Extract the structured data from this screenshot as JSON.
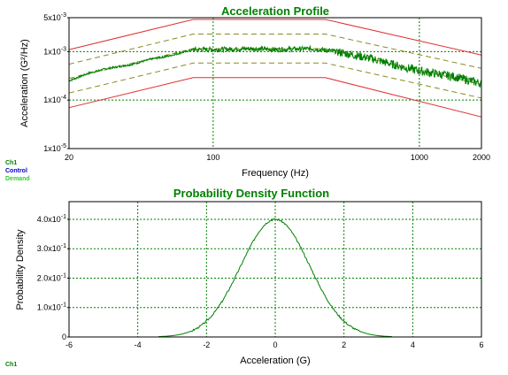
{
  "colors": {
    "title": "#008000",
    "abort_lines": "#e03030",
    "alarm_lines": "#8a8a20",
    "control": "#008000",
    "demand": "#66dd66",
    "grid": "#008000",
    "legend_ch1": "#008000",
    "legend_control": "#0000cc",
    "legend_demand": "#33cc33"
  },
  "legend_top": {
    "ch1": "Ch1",
    "control": "Control",
    "demand": "Demand"
  },
  "legend_bottom": {
    "ch1": "Ch1"
  },
  "chart_data": [
    {
      "type": "line",
      "title": "Acceleration Profile",
      "xlabel": "Frequency (Hz)",
      "ylabel": "Acceleration (G²/Hz)",
      "x_scale": "log",
      "y_scale": "log",
      "xlim": [
        20,
        2000
      ],
      "ylim": [
        1e-05,
        0.005
      ],
      "grid": true,
      "x_ticks": [
        {
          "value": 20,
          "label": "20"
        },
        {
          "value": 100,
          "label": "100"
        },
        {
          "value": 1000,
          "label": "1000"
        },
        {
          "value": 2000,
          "label": "2000"
        }
      ],
      "y_ticks": [
        {
          "value": 0.005,
          "mant": "5x10",
          "exp": "-3"
        },
        {
          "value": 0.001,
          "mant": "1x10",
          "exp": "-3"
        },
        {
          "value": 0.0001,
          "mant": "1x10",
          "exp": "-4"
        },
        {
          "value": 1e-05,
          "mant": "1x10",
          "exp": "-5"
        }
      ],
      "profile_breakpoints_hz": [
        20,
        80,
        350,
        2000
      ],
      "series": [
        {
          "role": "abort-high",
          "x": [
            20,
            80,
            350,
            2000
          ],
          "y": [
            0.0011,
            0.0046,
            0.0046,
            0.00085
          ]
        },
        {
          "role": "alarm-high",
          "x": [
            20,
            80,
            350,
            2000
          ],
          "y": [
            0.00055,
            0.0023,
            0.0023,
            0.00045
          ]
        },
        {
          "role": "demand",
          "x": [
            20,
            80,
            350,
            2000
          ],
          "y": [
            0.00028,
            0.00115,
            0.00115,
            0.00021
          ]
        },
        {
          "role": "alarm-low",
          "x": [
            20,
            80,
            350,
            2000
          ],
          "y": [
            0.00014,
            0.00058,
            0.00058,
            0.00011
          ]
        },
        {
          "role": "abort-low",
          "x": [
            20,
            80,
            350,
            2000
          ],
          "y": [
            7e-05,
            0.00029,
            0.00029,
            4.5e-05
          ]
        },
        {
          "role": "control",
          "x": [
            20,
            25,
            30,
            40,
            50,
            60,
            70,
            80,
            100,
            150,
            200,
            300,
            400,
            600,
            800,
            1000,
            1500,
            2000
          ],
          "y": [
            0.00025,
            0.00036,
            0.00044,
            0.00054,
            0.0007,
            0.0008,
            0.00095,
            0.0011,
            0.0011,
            0.00115,
            0.0011,
            0.00115,
            0.001,
            0.0007,
            0.0005,
            0.0004,
            0.0003,
            0.00022
          ]
        }
      ]
    },
    {
      "type": "line",
      "title": "Probability Density Function",
      "xlabel": "Acceleration (G)",
      "ylabel": "Probability Density",
      "xlim": [
        -6,
        6
      ],
      "ylim": [
        0,
        0.46
      ],
      "grid": true,
      "x_ticks": [
        {
          "value": -6,
          "label": "-6"
        },
        {
          "value": -4,
          "label": "-4"
        },
        {
          "value": -2,
          "label": "-2"
        },
        {
          "value": 0,
          "label": "0"
        },
        {
          "value": 2,
          "label": "2"
        },
        {
          "value": 4,
          "label": "4"
        },
        {
          "value": 6,
          "label": "6"
        }
      ],
      "y_ticks": [
        {
          "value": 0.4,
          "mant": "4.0x10",
          "exp": "-1"
        },
        {
          "value": 0.3,
          "mant": "3.0x10",
          "exp": "-1"
        },
        {
          "value": 0.2,
          "mant": "2.0x10",
          "exp": "-1"
        },
        {
          "value": 0.1,
          "mant": "1.0x10",
          "exp": "-1"
        },
        {
          "value": 0,
          "mant": "0",
          "exp": ""
        }
      ],
      "series": [
        {
          "role": "pdf",
          "mean": 0,
          "std": 1,
          "x_range": [
            -3.4,
            3.4
          ],
          "peak": 0.4
        }
      ]
    }
  ]
}
